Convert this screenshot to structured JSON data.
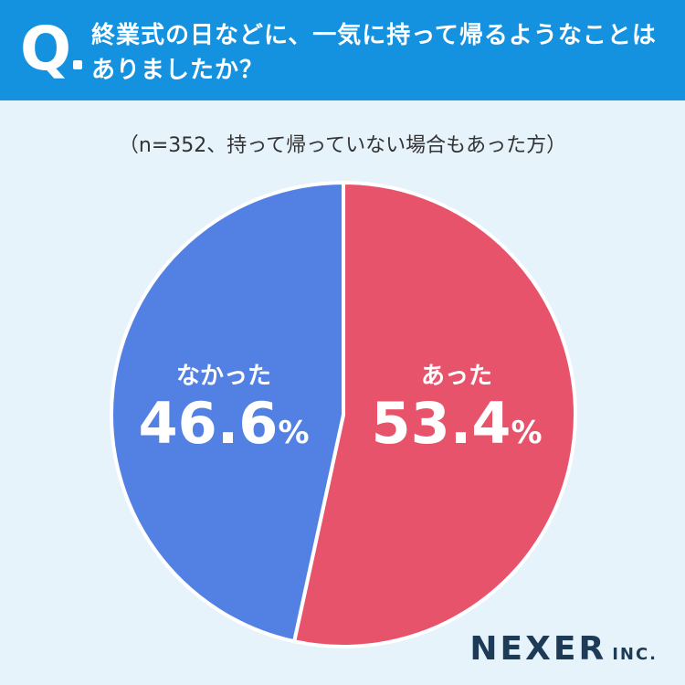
{
  "header": {
    "q_label": "Q",
    "question_line1": "終業式の日などに、一気に持って帰るようなことは",
    "question_line2": "ありましたか？"
  },
  "note": "（n=352、持って帰っていない場合もあった方）",
  "colors": {
    "header": "#1592df",
    "background": "#e6f3fb",
    "atta": "#e8536c",
    "nakatta": "#5381e3"
  },
  "chart_data": {
    "type": "pie",
    "title": "",
    "slices": [
      {
        "label": "あった",
        "value": 53.4,
        "display": "53.4",
        "unit": "%",
        "color": "#e8536c"
      },
      {
        "label": "なかった",
        "value": 46.6,
        "display": "46.6",
        "unit": "%",
        "color": "#5381e3"
      }
    ]
  },
  "brand": {
    "name": "NEXER",
    "suffix": "INC."
  }
}
